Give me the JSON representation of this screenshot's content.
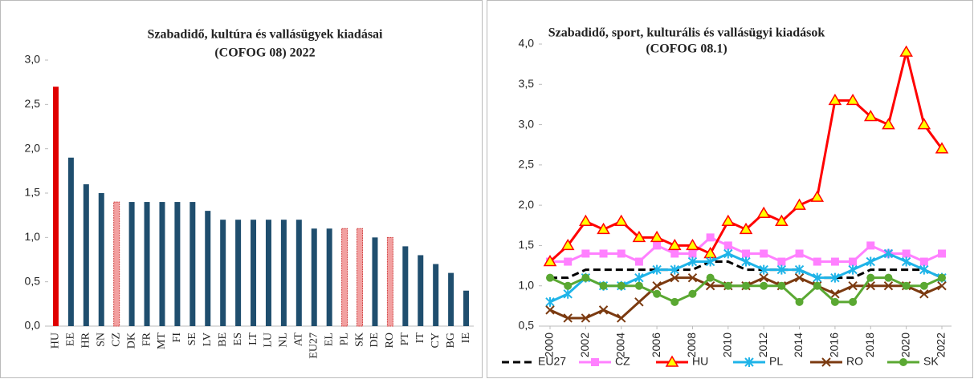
{
  "chart_data": [
    {
      "type": "bar",
      "title": "Szabadidő, kultúra és vallásügyek kiadásai",
      "subtitle": "(COFOG 08) 2022",
      "categories": [
        "HU",
        "EE",
        "HR",
        "SN",
        "CZ",
        "DK",
        "FR",
        "MT",
        "FI",
        "SE",
        "LV",
        "BE",
        "ES",
        "LT",
        "LU",
        "NL",
        "AT",
        "EU27",
        "EL",
        "PL",
        "SK",
        "DE",
        "RO",
        "PT",
        "IT",
        "CY",
        "BG",
        "IE"
      ],
      "values": [
        2.7,
        1.9,
        1.6,
        1.5,
        1.4,
        1.4,
        1.4,
        1.4,
        1.4,
        1.4,
        1.3,
        1.2,
        1.2,
        1.2,
        1.2,
        1.2,
        1.2,
        1.1,
        1.1,
        1.1,
        1.1,
        1.0,
        1.0,
        0.9,
        0.8,
        0.7,
        0.6,
        0.4
      ],
      "colors": [
        "#e00000",
        "#1f4e6e",
        "#1f4e6e",
        "#1f4e6e",
        "#f2a0a0",
        "#1f4e6e",
        "#1f4e6e",
        "#1f4e6e",
        "#1f4e6e",
        "#1f4e6e",
        "#1f4e6e",
        "#1f4e6e",
        "#1f4e6e",
        "#1f4e6e",
        "#1f4e6e",
        "#1f4e6e",
        "#1f4e6e",
        "#1f4e6e",
        "#1f4e6e",
        "#f2a0a0",
        "#f2a0a0",
        "#1f4e6e",
        "#f2a0a0",
        "#1f4e6e",
        "#1f4e6e",
        "#1f4e6e",
        "#1f4e6e",
        "#1f4e6e"
      ],
      "ylim": [
        0,
        3
      ],
      "yticks": [
        {
          "value": 0,
          "label": "0,0"
        },
        {
          "value": 0.5,
          "label": "0,5"
        },
        {
          "value": 1,
          "label": "1,0"
        },
        {
          "value": 1.5,
          "label": "1,5"
        },
        {
          "value": 2,
          "label": "2,0"
        },
        {
          "value": 2.5,
          "label": "2,5"
        },
        {
          "value": 3,
          "label": "3,0"
        }
      ],
      "grid": false
    },
    {
      "type": "line",
      "title": "Szabadidő, sport, kulturális és vallásügyi kiadások",
      "subtitle": "(COFOG 08.1)",
      "x": [
        2000,
        2001,
        2002,
        2003,
        2004,
        2005,
        2006,
        2007,
        2008,
        2009,
        2010,
        2011,
        2012,
        2013,
        2014,
        2015,
        2016,
        2017,
        2018,
        2019,
        2020,
        2021,
        2022
      ],
      "xlim": [
        2000,
        2022
      ],
      "xticks": [
        2000,
        2002,
        2004,
        2006,
        2008,
        2010,
        2012,
        2014,
        2016,
        2018,
        2020,
        2022
      ],
      "ylim": [
        0.5,
        4
      ],
      "yticks": [
        {
          "value": 0.5,
          "label": "0,5"
        },
        {
          "value": 1,
          "label": "1,0"
        },
        {
          "value": 1.5,
          "label": "1,5"
        },
        {
          "value": 2,
          "label": "2,0"
        },
        {
          "value": 2.5,
          "label": "2,5"
        },
        {
          "value": 3,
          "label": "3,0"
        },
        {
          "value": 3.5,
          "label": "3,5"
        },
        {
          "value": 4,
          "label": "4,0"
        }
      ],
      "legend": "bottom",
      "series": [
        {
          "name": "EU27",
          "color": "#000000",
          "dashed": true,
          "marker": "none",
          "values": [
            1.1,
            1.1,
            1.2,
            1.2,
            1.2,
            1.2,
            1.2,
            1.2,
            1.2,
            1.3,
            1.3,
            1.2,
            1.2,
            1.2,
            1.2,
            1.1,
            1.1,
            1.1,
            1.2,
            1.2,
            1.2,
            1.2,
            1.1
          ]
        },
        {
          "name": "CZ",
          "color": "#ff80ff",
          "marker": "square",
          "values": [
            1.3,
            1.3,
            1.4,
            1.4,
            1.4,
            1.3,
            1.5,
            1.4,
            1.4,
            1.6,
            1.5,
            1.4,
            1.4,
            1.3,
            1.4,
            1.3,
            1.3,
            1.3,
            1.5,
            1.4,
            1.4,
            1.3,
            1.4
          ]
        },
        {
          "name": "HU",
          "color": "#ff0000",
          "marker": "triangle",
          "values": [
            1.3,
            1.5,
            1.8,
            1.7,
            1.8,
            1.6,
            1.6,
            1.5,
            1.5,
            1.4,
            1.8,
            1.7,
            1.9,
            1.8,
            2.0,
            2.1,
            3.3,
            3.3,
            3.1,
            3.0,
            3.9,
            3.0,
            2.7
          ]
        },
        {
          "name": "PL",
          "color": "#1fb4e8",
          "marker": "star",
          "values": [
            0.8,
            0.9,
            1.1,
            1.0,
            1.0,
            1.1,
            1.2,
            1.2,
            1.3,
            1.3,
            1.4,
            1.3,
            1.2,
            1.2,
            1.2,
            1.1,
            1.1,
            1.2,
            1.3,
            1.4,
            1.3,
            1.2,
            1.1
          ]
        },
        {
          "name": "RO",
          "color": "#7b3a10",
          "marker": "x",
          "values": [
            0.7,
            0.6,
            0.6,
            0.7,
            0.6,
            0.8,
            1.0,
            1.1,
            1.1,
            1.0,
            1.0,
            1.0,
            1.1,
            1.0,
            1.1,
            1.0,
            0.9,
            1.0,
            1.0,
            1.0,
            1.0,
            0.9,
            1.0
          ]
        },
        {
          "name": "SK",
          "color": "#5aa832",
          "marker": "circle",
          "values": [
            1.1,
            1.0,
            1.1,
            1.0,
            1.0,
            1.0,
            0.9,
            0.8,
            0.9,
            1.1,
            1.0,
            1.0,
            1.0,
            1.0,
            0.8,
            1.0,
            0.8,
            0.8,
            1.1,
            1.1,
            1.0,
            1.0,
            1.1
          ]
        }
      ]
    }
  ]
}
